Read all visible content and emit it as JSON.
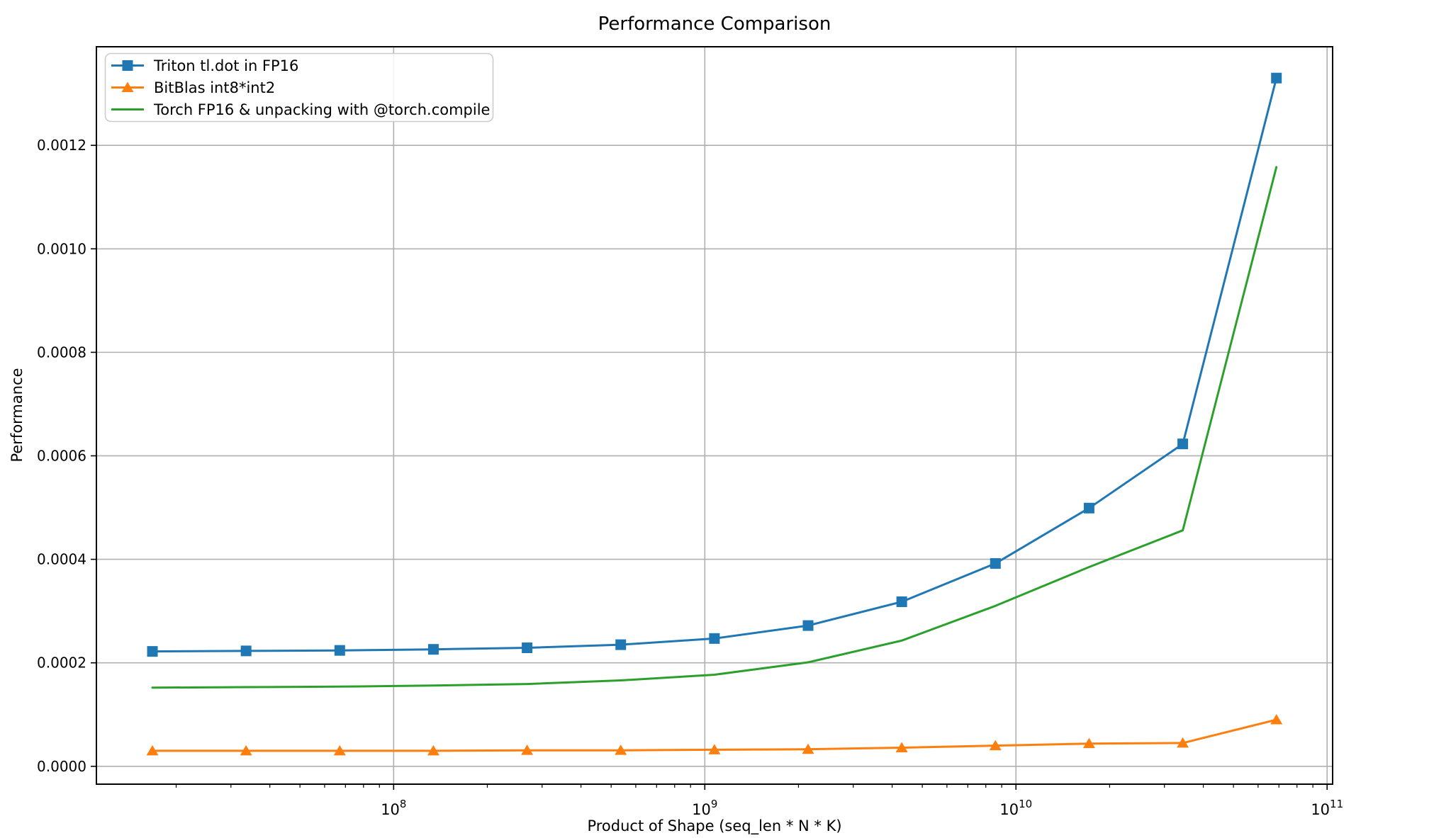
{
  "chart_data": {
    "type": "line",
    "title": "Performance Comparison",
    "xlabel": "Product of Shape (seq_len * N * K)",
    "ylabel": "Performance",
    "x_scale": "log",
    "grid": true,
    "legend_position": "upper left",
    "background_color": "#ffffff",
    "grid_color": "#b0b0b0",
    "axis_color": "#000000",
    "legend_edge_color": "#cccccc",
    "x": [
      16777216,
      33554432,
      67108864,
      134217728,
      268435456,
      536870912,
      1073741824,
      2147483648,
      4294967296,
      8589934592,
      17179869184,
      34359738368,
      68719476736
    ],
    "series": [
      {
        "name": "Triton tl.dot in FP16",
        "color": "#1f77b4",
        "marker": "square",
        "values": [
          0.000222,
          0.000223,
          0.000224,
          0.000226,
          0.000229,
          0.000235,
          0.000247,
          0.000272,
          0.000318,
          0.000392,
          0.000499,
          0.000623,
          0.00133
        ]
      },
      {
        "name": "BitBlas int8*int2",
        "color": "#ff7f0e",
        "marker": "triangle-up",
        "values": [
          3e-05,
          3e-05,
          3e-05,
          3e-05,
          3.1e-05,
          3.1e-05,
          3.2e-05,
          3.3e-05,
          3.6e-05,
          4e-05,
          4.4e-05,
          4.5e-05,
          9e-05
        ]
      },
      {
        "name": "Torch FP16 & unpacking with @torch.compile",
        "color": "#2ca02c",
        "marker": "none",
        "values": [
          0.000152,
          0.000153,
          0.000154,
          0.000156,
          0.000159,
          0.000166,
          0.000177,
          0.000201,
          0.000243,
          0.00031,
          0.000385,
          0.000456,
          0.001158
        ]
      }
    ],
    "xlim_log10": [
      7.0447,
      11.0177
    ],
    "ylim": [
      -3.45e-05,
      0.0013905
    ],
    "x_tick_base": "10",
    "x_tick_exponents": [
      8,
      9,
      10,
      11
    ],
    "y_ticks": [
      0.0,
      0.0002,
      0.0004,
      0.0006,
      0.0008,
      0.001,
      0.0012
    ],
    "y_tick_labels": [
      "0.0000",
      "0.0002",
      "0.0004",
      "0.0006",
      "0.0008",
      "0.0010",
      "0.0012"
    ]
  }
}
